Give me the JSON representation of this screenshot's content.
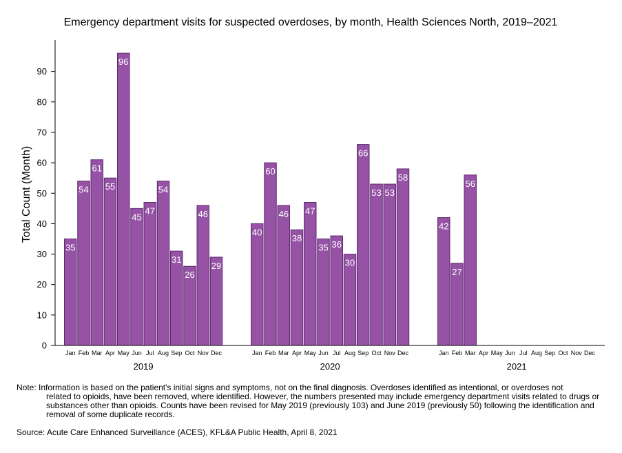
{
  "chart_data": {
    "type": "bar",
    "title": "Emergency department visits for suspected overdoses, by month, Health Sciences North, 2019–2021",
    "xlabel": "",
    "ylabel": "Total Count (Month)",
    "ylim": [
      0,
      100
    ],
    "yticks": [
      0,
      10,
      20,
      30,
      40,
      50,
      60,
      70,
      80,
      90
    ],
    "bar_color": "#9653a6",
    "bar_edge_color": "#5e2a6d",
    "label_color": "#ffffff",
    "months": [
      "Jan",
      "Feb",
      "Mar",
      "Apr",
      "May",
      "Jun",
      "Jul",
      "Aug",
      "Sep",
      "Oct",
      "Nov",
      "Dec"
    ],
    "groups": [
      {
        "year": "2019",
        "values": [
          35,
          54,
          61,
          55,
          96,
          45,
          47,
          54,
          31,
          26,
          46,
          29
        ]
      },
      {
        "year": "2020",
        "values": [
          40,
          60,
          46,
          38,
          47,
          35,
          36,
          30,
          66,
          53,
          53,
          58
        ]
      },
      {
        "year": "2021",
        "values": [
          42,
          27,
          56,
          null,
          null,
          null,
          null,
          null,
          null,
          null,
          null,
          null
        ]
      }
    ],
    "grid": false,
    "legend": "none"
  },
  "note": {
    "first_line": "Note: Information is based on the patient's initial signs and symptoms, not on the final diagnosis. Overdoses identified as intentional, or overdoses not",
    "rest": "related to opioids, have been removed, where identified. However, the numbers presented may include emergency department visits related to drugs or substances other than opioids. Counts have been revised for May 2019 (previously 103) and June 2019 (previously 50) following the identification and removal of some duplicate records."
  },
  "source": "Source: Acute Care Enhanced Surveillance (ACES), KFL&A Public Health, April 8, 2021"
}
